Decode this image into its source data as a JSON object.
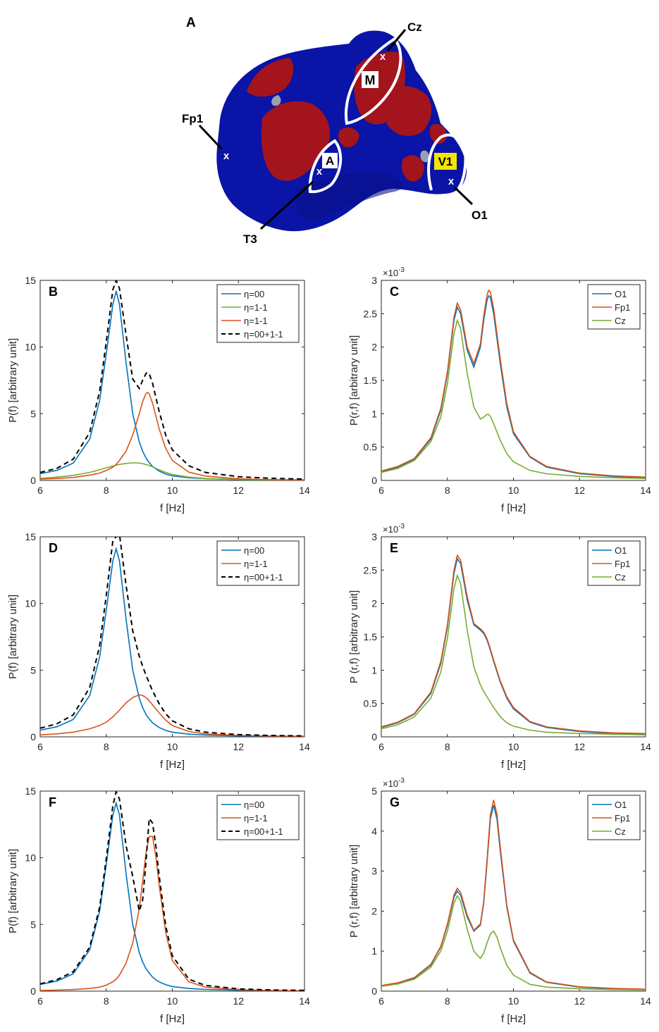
{
  "figure": {
    "panel_a": {
      "label": "A",
      "regions": [
        "M",
        "A",
        "V1"
      ],
      "electrodes": [
        "Cz",
        "Fp1",
        "T3",
        "O1"
      ],
      "marker": "x",
      "colors": {
        "blue": "#0a14a6",
        "red": "#a3141c",
        "outline": "#ffffff",
        "v1_box": "#f5e600"
      }
    }
  },
  "chart_data": [
    {
      "panel": "B",
      "type": "line",
      "xlabel": "f [Hz]",
      "ylabel": "P(f) [arbitrary unit]",
      "xlim": [
        6,
        14
      ],
      "ylim": [
        0,
        15
      ],
      "xticks": [
        "6",
        "8",
        "10",
        "12",
        "14"
      ],
      "yticks": [
        "0",
        "5",
        "10",
        "15"
      ],
      "exponent": "",
      "x": [
        6.0,
        6.5,
        7.0,
        7.5,
        7.8,
        8.0,
        8.2,
        8.3,
        8.4,
        8.6,
        8.8,
        9.0,
        9.1,
        9.2,
        9.25,
        9.3,
        9.4,
        9.6,
        9.8,
        10.0,
        10.5,
        11.0,
        12.0,
        13.0,
        14.0
      ],
      "series": [
        {
          "name": "η=00",
          "color": "#0072bd",
          "dash": false,
          "values": [
            0.5,
            0.75,
            1.3,
            3.1,
            6.0,
            9.5,
            13.2,
            14.2,
            13.2,
            8.8,
            5.0,
            2.9,
            2.2,
            1.7,
            1.5,
            1.35,
            1.05,
            0.7,
            0.48,
            0.35,
            0.2,
            0.13,
            0.07,
            0.04,
            0.03
          ]
        },
        {
          "name": "η=1-1",
          "color": "#77ac30",
          "dash": false,
          "values": [
            0.15,
            0.25,
            0.38,
            0.6,
            0.8,
            0.95,
            1.08,
            1.14,
            1.2,
            1.28,
            1.32,
            1.3,
            1.26,
            1.2,
            1.16,
            1.12,
            1.02,
            0.8,
            0.6,
            0.45,
            0.25,
            0.15,
            0.07,
            0.04,
            0.02
          ]
        },
        {
          "name": "η=1-1",
          "color": "#d95319",
          "dash": false,
          "values": [
            0.1,
            0.15,
            0.22,
            0.4,
            0.55,
            0.75,
            1.0,
            1.2,
            1.5,
            2.2,
            3.4,
            5.0,
            5.9,
            6.5,
            6.6,
            6.5,
            5.8,
            3.9,
            2.4,
            1.5,
            0.62,
            0.33,
            0.12,
            0.06,
            0.04
          ]
        },
        {
          "name": "η=00+1-1",
          "color": "#000000",
          "dash": true,
          "values": [
            0.6,
            0.9,
            1.6,
            3.6,
            6.7,
            10.4,
            14.3,
            15.0,
            14.4,
            10.9,
            7.6,
            6.9,
            7.5,
            8.0,
            8.1,
            8.0,
            7.3,
            5.2,
            3.4,
            2.3,
            1.1,
            0.6,
            0.28,
            0.16,
            0.1
          ]
        }
      ]
    },
    {
      "panel": "C",
      "type": "line",
      "xlabel": "f [Hz]",
      "ylabel": "P(r,f) [arbitrary unit]",
      "xlim": [
        6,
        14
      ],
      "ylim": [
        0,
        3
      ],
      "xticks": [
        "6",
        "8",
        "10",
        "12",
        "14"
      ],
      "yticks": [
        "0",
        "0.5",
        "1",
        "1.5",
        "2",
        "2.5",
        "3"
      ],
      "exponent": "×10-3",
      "x": [
        6.0,
        6.5,
        7.0,
        7.5,
        7.8,
        8.0,
        8.2,
        8.3,
        8.4,
        8.6,
        8.8,
        9.0,
        9.1,
        9.2,
        9.25,
        9.3,
        9.4,
        9.6,
        9.8,
        10.0,
        10.5,
        11.0,
        12.0,
        13.0,
        14.0
      ],
      "series": [
        {
          "name": "O1",
          "color": "#0072bd",
          "dash": false,
          "values": [
            0.13,
            0.2,
            0.32,
            0.62,
            1.05,
            1.6,
            2.4,
            2.6,
            2.5,
            1.95,
            1.7,
            2.0,
            2.4,
            2.7,
            2.77,
            2.75,
            2.5,
            1.75,
            1.1,
            0.7,
            0.35,
            0.2,
            0.1,
            0.06,
            0.04
          ]
        },
        {
          "name": "Fp1",
          "color": "#d95319",
          "dash": false,
          "values": [
            0.14,
            0.21,
            0.33,
            0.64,
            1.08,
            1.63,
            2.45,
            2.66,
            2.56,
            2.0,
            1.75,
            2.05,
            2.47,
            2.78,
            2.85,
            2.83,
            2.58,
            1.82,
            1.15,
            0.73,
            0.36,
            0.21,
            0.11,
            0.07,
            0.05
          ]
        },
        {
          "name": "Cz",
          "color": "#77ac30",
          "dash": false,
          "values": [
            0.12,
            0.18,
            0.3,
            0.58,
            0.95,
            1.45,
            2.2,
            2.4,
            2.28,
            1.6,
            1.1,
            0.92,
            0.95,
            0.99,
            0.99,
            0.96,
            0.85,
            0.6,
            0.4,
            0.28,
            0.15,
            0.1,
            0.06,
            0.04,
            0.03
          ]
        }
      ]
    },
    {
      "panel": "D",
      "type": "line",
      "xlabel": "f [Hz]",
      "ylabel": "P(f) [arbitrary unit]",
      "xlim": [
        6,
        14
      ],
      "ylim": [
        0,
        15
      ],
      "xticks": [
        "6",
        "8",
        "10",
        "12",
        "14"
      ],
      "yticks": [
        "0",
        "5",
        "10",
        "15"
      ],
      "exponent": "",
      "x": [
        6.0,
        6.5,
        7.0,
        7.5,
        7.8,
        8.0,
        8.2,
        8.3,
        8.4,
        8.6,
        8.8,
        9.0,
        9.1,
        9.2,
        9.25,
        9.3,
        9.4,
        9.6,
        9.8,
        10.0,
        10.5,
        11.0,
        12.0,
        13.0,
        14.0
      ],
      "series": [
        {
          "name": "η=00",
          "color": "#0072bd",
          "dash": false,
          "values": [
            0.5,
            0.75,
            1.3,
            3.1,
            6.0,
            9.5,
            13.2,
            14.1,
            13.2,
            8.8,
            5.0,
            2.9,
            2.2,
            1.7,
            1.5,
            1.35,
            1.05,
            0.7,
            0.48,
            0.35,
            0.2,
            0.13,
            0.07,
            0.04,
            0.03
          ]
        },
        {
          "name": "η=1-1",
          "color": "#d95319",
          "dash": false,
          "values": [
            0.15,
            0.22,
            0.35,
            0.6,
            0.85,
            1.1,
            1.5,
            1.75,
            2.0,
            2.55,
            2.95,
            3.15,
            3.1,
            2.95,
            2.85,
            2.7,
            2.4,
            1.8,
            1.25,
            0.85,
            0.4,
            0.22,
            0.1,
            0.06,
            0.04
          ]
        },
        {
          "name": "η=00+1-1",
          "color": "#000000",
          "dash": true,
          "values": [
            0.65,
            0.97,
            1.65,
            3.7,
            6.85,
            10.6,
            14.7,
            15.0,
            15.2,
            11.35,
            7.95,
            6.05,
            5.3,
            4.65,
            4.35,
            4.05,
            3.45,
            2.5,
            1.73,
            1.2,
            0.6,
            0.35,
            0.17,
            0.1,
            0.07
          ]
        }
      ]
    },
    {
      "panel": "E",
      "type": "line",
      "xlabel": "f [Hz]",
      "ylabel": "P (r,f) [arbitrary unit]",
      "xlim": [
        6,
        14
      ],
      "ylim": [
        0,
        3
      ],
      "xticks": [
        "6",
        "8",
        "10",
        "12",
        "14"
      ],
      "yticks": [
        "0",
        "0.5",
        "1",
        "1.5",
        "2",
        "2.5",
        "3"
      ],
      "exponent": "×10-3",
      "x": [
        6.0,
        6.5,
        7.0,
        7.5,
        7.8,
        8.0,
        8.2,
        8.3,
        8.4,
        8.6,
        8.8,
        9.0,
        9.1,
        9.2,
        9.25,
        9.3,
        9.4,
        9.6,
        9.8,
        10.0,
        10.5,
        11.0,
        12.0,
        13.0,
        14.0
      ],
      "series": [
        {
          "name": "O1",
          "color": "#0072bd",
          "dash": false,
          "values": [
            0.14,
            0.21,
            0.34,
            0.65,
            1.1,
            1.65,
            2.45,
            2.67,
            2.6,
            2.05,
            1.68,
            1.6,
            1.55,
            1.45,
            1.38,
            1.3,
            1.13,
            0.82,
            0.58,
            0.42,
            0.22,
            0.14,
            0.08,
            0.05,
            0.04
          ]
        },
        {
          "name": "Fp1",
          "color": "#d95319",
          "dash": false,
          "values": [
            0.15,
            0.22,
            0.35,
            0.67,
            1.13,
            1.68,
            2.5,
            2.72,
            2.65,
            2.1,
            1.7,
            1.62,
            1.57,
            1.47,
            1.4,
            1.32,
            1.15,
            0.84,
            0.6,
            0.44,
            0.23,
            0.15,
            0.09,
            0.06,
            0.05
          ]
        },
        {
          "name": "Cz",
          "color": "#77ac30",
          "dash": false,
          "values": [
            0.12,
            0.18,
            0.3,
            0.58,
            0.97,
            1.48,
            2.22,
            2.42,
            2.3,
            1.6,
            1.05,
            0.78,
            0.68,
            0.6,
            0.56,
            0.52,
            0.44,
            0.3,
            0.21,
            0.16,
            0.1,
            0.07,
            0.05,
            0.04,
            0.03
          ]
        }
      ]
    },
    {
      "panel": "F",
      "type": "line",
      "xlabel": "f [Hz]",
      "ylabel": "P(f) [arbitrary unit]",
      "xlim": [
        6,
        14
      ],
      "ylim": [
        0,
        15
      ],
      "xticks": [
        "6",
        "8",
        "10",
        "12",
        "14"
      ],
      "yticks": [
        "0",
        "5",
        "10",
        "15"
      ],
      "exponent": "",
      "x": [
        6.0,
        6.5,
        7.0,
        7.5,
        7.8,
        8.0,
        8.2,
        8.3,
        8.4,
        8.6,
        8.8,
        9.0,
        9.1,
        9.2,
        9.3,
        9.4,
        9.5,
        9.6,
        9.8,
        10.0,
        10.5,
        11.0,
        12.0,
        13.0,
        14.0
      ],
      "series": [
        {
          "name": "η=00",
          "color": "#0072bd",
          "dash": false,
          "values": [
            0.5,
            0.75,
            1.3,
            3.1,
            6.0,
            9.5,
            13.2,
            14.1,
            13.2,
            8.8,
            5.0,
            2.9,
            2.2,
            1.7,
            1.35,
            1.05,
            0.85,
            0.7,
            0.48,
            0.35,
            0.2,
            0.13,
            0.07,
            0.04,
            0.03
          ]
        },
        {
          "name": "η=1-1",
          "color": "#d95319",
          "dash": false,
          "values": [
            0.05,
            0.08,
            0.12,
            0.2,
            0.3,
            0.45,
            0.7,
            0.9,
            1.2,
            2.1,
            3.6,
            6.2,
            8.2,
            10.3,
            11.6,
            11.6,
            10.1,
            8.0,
            4.4,
            2.3,
            0.7,
            0.3,
            0.1,
            0.05,
            0.03
          ]
        },
        {
          "name": "η=00+1-1",
          "color": "#000000",
          "dash": true,
          "values": [
            0.55,
            0.85,
            1.45,
            3.3,
            6.3,
            9.95,
            13.9,
            14.95,
            14.4,
            10.9,
            8.6,
            6.0,
            6.8,
            9.6,
            12.95,
            12.6,
            10.9,
            8.7,
            4.9,
            2.65,
            0.9,
            0.43,
            0.17,
            0.09,
            0.06
          ]
        }
      ]
    },
    {
      "panel": "G",
      "type": "line",
      "xlabel": "f [Hz]",
      "ylabel": "P (r,f) [arbitrary unit]",
      "xlim": [
        6,
        14
      ],
      "ylim": [
        0,
        5
      ],
      "xticks": [
        "6",
        "8",
        "10",
        "12",
        "14"
      ],
      "yticks": [
        "0",
        "1",
        "2",
        "3",
        "4",
        "5"
      ],
      "exponent": "×10-3",
      "x": [
        6.0,
        6.5,
        7.0,
        7.5,
        7.8,
        8.0,
        8.2,
        8.3,
        8.4,
        8.6,
        8.8,
        9.0,
        9.1,
        9.2,
        9.3,
        9.4,
        9.5,
        9.6,
        9.8,
        10.0,
        10.5,
        11.0,
        12.0,
        13.0,
        14.0
      ],
      "series": [
        {
          "name": "O1",
          "color": "#0072bd",
          "dash": false,
          "values": [
            0.13,
            0.2,
            0.33,
            0.65,
            1.1,
            1.65,
            2.35,
            2.5,
            2.4,
            1.85,
            1.5,
            1.65,
            2.2,
            3.2,
            4.3,
            4.65,
            4.3,
            3.5,
            2.1,
            1.25,
            0.45,
            0.22,
            0.1,
            0.06,
            0.04
          ]
        },
        {
          "name": "Fp1",
          "color": "#d95319",
          "dash": false,
          "values": [
            0.14,
            0.21,
            0.34,
            0.67,
            1.12,
            1.68,
            2.4,
            2.57,
            2.47,
            1.9,
            1.52,
            1.68,
            2.25,
            3.28,
            4.4,
            4.78,
            4.42,
            3.6,
            2.15,
            1.28,
            0.47,
            0.23,
            0.11,
            0.07,
            0.05
          ]
        },
        {
          "name": "Cz",
          "color": "#77ac30",
          "dash": false,
          "values": [
            0.12,
            0.18,
            0.3,
            0.6,
            1.0,
            1.5,
            2.2,
            2.38,
            2.25,
            1.55,
            1.0,
            0.82,
            0.95,
            1.2,
            1.43,
            1.5,
            1.35,
            1.08,
            0.65,
            0.4,
            0.17,
            0.1,
            0.06,
            0.04,
            0.03
          ]
        }
      ]
    }
  ]
}
